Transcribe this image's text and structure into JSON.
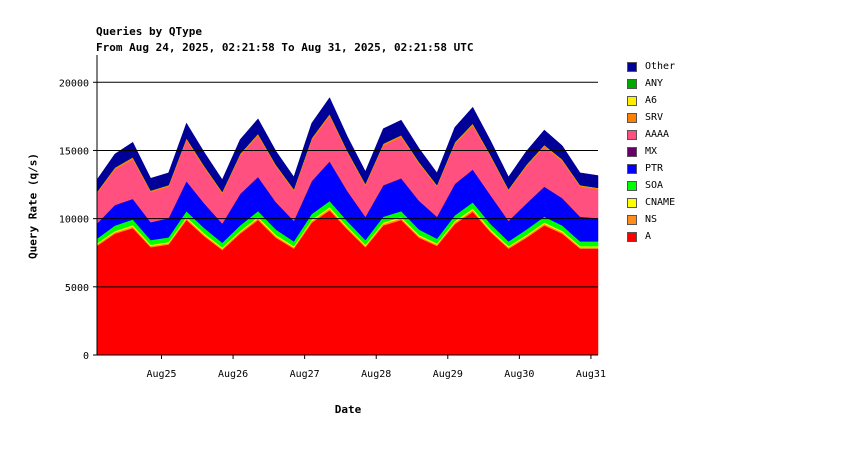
{
  "chart_data": {
    "type": "area",
    "stacked": true,
    "title": "Queries by QType",
    "subtitle": "From Aug 24, 2025, 02:21:58 To Aug 31, 2025, 02:21:58 UTC",
    "xlabel": "Date",
    "ylabel": "Query Rate (q/s)",
    "ylim": [
      0,
      22000
    ],
    "yticks": [
      0,
      5000,
      10000,
      15000,
      20000
    ],
    "xlim_hours": [
      0,
      168
    ],
    "xticks": [
      {
        "label": "Aug25",
        "hour": 21.63
      },
      {
        "label": "Aug26",
        "hour": 45.63
      },
      {
        "label": "Aug27",
        "hour": 69.63
      },
      {
        "label": "Aug28",
        "hour": 93.63
      },
      {
        "label": "Aug29",
        "hour": 117.63
      },
      {
        "label": "Aug30",
        "hour": 141.63
      },
      {
        "label": "Aug31",
        "hour": 165.63
      }
    ],
    "legend_position": "right",
    "x": [
      0,
      6,
      12,
      18,
      24,
      30,
      36,
      42,
      48,
      54,
      60,
      66,
      72,
      78,
      84,
      90,
      96,
      102,
      108,
      114,
      120,
      126,
      132,
      138,
      144,
      150,
      156,
      162,
      168
    ],
    "series": [
      {
        "name": "A",
        "color": "#ff0000",
        "values": [
          8000,
          8900,
          9300,
          7900,
          8100,
          9900,
          8700,
          7700,
          8900,
          9900,
          8600,
          7800,
          9700,
          10600,
          9200,
          7900,
          9500,
          9900,
          8600,
          8000,
          9600,
          10500,
          9000,
          7800,
          8600,
          9500,
          8900,
          7800,
          7800
        ]
      },
      {
        "name": "NS",
        "color": "#ff8c1a",
        "values": [
          100,
          100,
          120,
          100,
          100,
          120,
          110,
          100,
          110,
          120,
          110,
          100,
          120,
          130,
          110,
          100,
          120,
          120,
          110,
          100,
          120,
          130,
          110,
          100,
          110,
          120,
          110,
          100,
          100
        ]
      },
      {
        "name": "CNAME",
        "color": "#ffff00",
        "values": [
          80,
          90,
          100,
          80,
          80,
          100,
          90,
          80,
          90,
          100,
          90,
          80,
          100,
          110,
          90,
          80,
          100,
          100,
          90,
          80,
          100,
          110,
          90,
          80,
          90,
          100,
          90,
          80,
          80
        ]
      },
      {
        "name": "SOA",
        "color": "#00ff00",
        "values": [
          350,
          400,
          420,
          350,
          350,
          420,
          400,
          350,
          400,
          430,
          400,
          350,
          420,
          450,
          400,
          350,
          420,
          430,
          400,
          350,
          420,
          450,
          400,
          350,
          400,
          420,
          400,
          350,
          350
        ]
      },
      {
        "name": "PTR",
        "color": "#0000ff",
        "values": [
          1100,
          1500,
          1500,
          1300,
          1400,
          2200,
          1800,
          1400,
          2300,
          2500,
          2000,
          1500,
          2400,
          2900,
          2200,
          1700,
          2300,
          2400,
          2100,
          1600,
          2300,
          2400,
          2100,
          1500,
          1900,
          2200,
          2000,
          1800,
          1700
        ]
      },
      {
        "name": "MX",
        "color": "#660066",
        "values": [
          10,
          10,
          10,
          10,
          10,
          10,
          10,
          10,
          10,
          10,
          10,
          10,
          10,
          10,
          10,
          10,
          10,
          10,
          10,
          10,
          10,
          10,
          10,
          10,
          10,
          10,
          10,
          10,
          10
        ]
      },
      {
        "name": "AAAA",
        "color": "#ff5080",
        "values": [
          2200,
          2600,
          2900,
          2200,
          2300,
          3000,
          2600,
          2200,
          2800,
          3000,
          2600,
          2200,
          3000,
          3300,
          2800,
          2300,
          2900,
          3000,
          2700,
          2200,
          2900,
          3200,
          2800,
          2200,
          2700,
          2900,
          2700,
          2200,
          2100
        ]
      },
      {
        "name": "SRV",
        "color": "#ff8000",
        "values": [
          100,
          120,
          130,
          100,
          100,
          130,
          120,
          100,
          120,
          140,
          120,
          100,
          130,
          150,
          120,
          100,
          130,
          140,
          120,
          100,
          130,
          150,
          120,
          100,
          120,
          130,
          120,
          100,
          100
        ]
      },
      {
        "name": "A6",
        "color": "#ffee00",
        "values": [
          10,
          10,
          10,
          10,
          10,
          10,
          10,
          10,
          10,
          10,
          10,
          10,
          10,
          10,
          10,
          10,
          10,
          10,
          10,
          10,
          10,
          10,
          10,
          10,
          10,
          10,
          10,
          10,
          10
        ]
      },
      {
        "name": "ANY",
        "color": "#00aa00",
        "values": [
          10,
          10,
          10,
          10,
          10,
          10,
          10,
          10,
          10,
          10,
          10,
          10,
          10,
          10,
          10,
          10,
          10,
          10,
          10,
          10,
          10,
          10,
          10,
          10,
          10,
          10,
          10,
          10,
          10
        ]
      },
      {
        "name": "Other",
        "color": "#000099",
        "values": [
          900,
          1000,
          1100,
          900,
          900,
          1100,
          1000,
          900,
          1050,
          1100,
          1000,
          900,
          1100,
          1200,
          1050,
          900,
          1100,
          1100,
          1000,
          900,
          1100,
          1200,
          1050,
          900,
          1000,
          1100,
          1000,
          900,
          900
        ]
      }
    ],
    "legend_order": [
      "Other",
      "ANY",
      "A6",
      "SRV",
      "AAAA",
      "MX",
      "PTR",
      "SOA",
      "CNAME",
      "NS",
      "A"
    ]
  }
}
